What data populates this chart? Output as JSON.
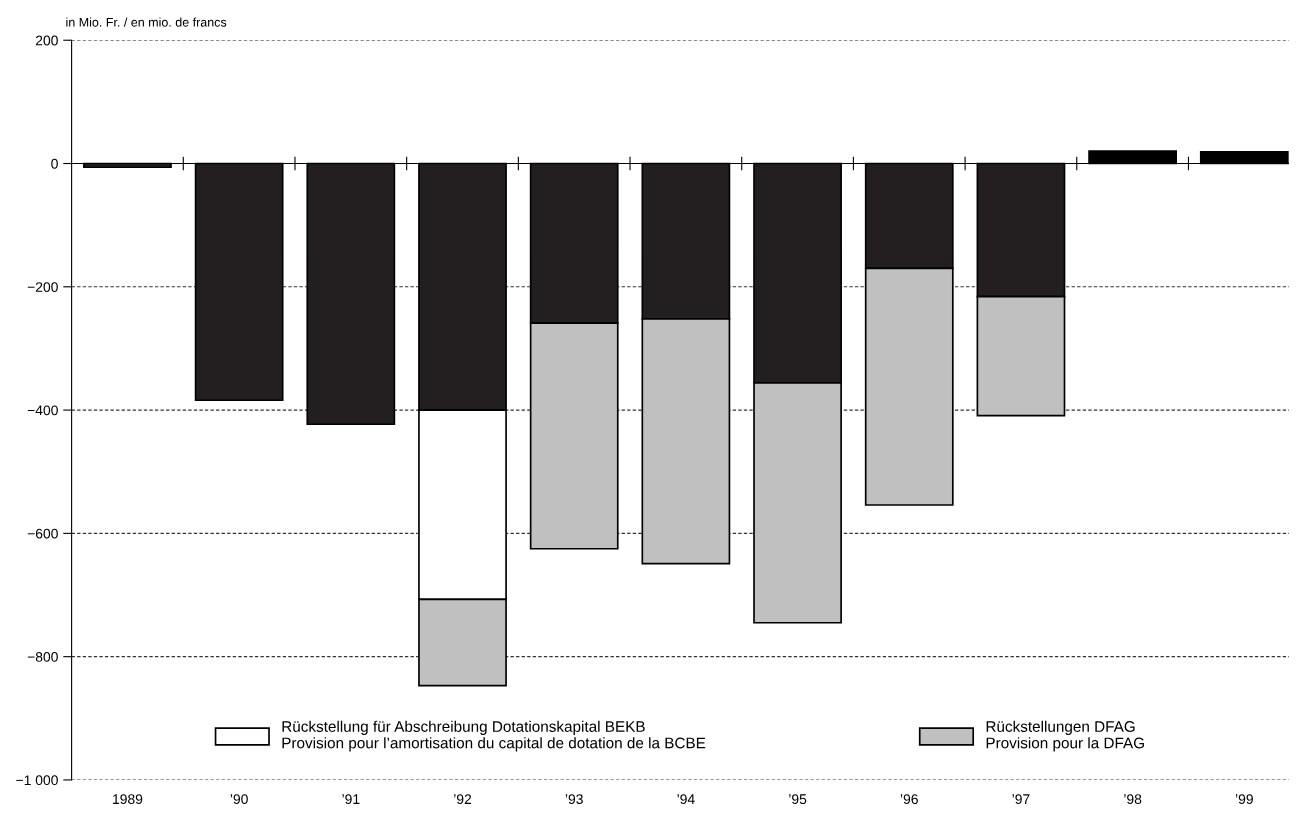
{
  "chart_data": {
    "type": "bar",
    "stacked": true,
    "ylabel": "in Mio. Fr. / en mio. de francs",
    "categories": [
      "1989",
      "’90",
      "’91",
      "’92",
      "’93",
      "’94",
      "’95",
      "’96",
      "’97",
      "’98",
      "’99"
    ],
    "series": [
      {
        "colors": [
          "#231f20",
          "#231f20",
          "#231f20",
          "#231f20",
          "#231f20",
          "#231f20",
          "#231f20",
          "#231f20",
          "#231f20",
          "#000000",
          "#000000"
        ],
        "values": [
          -6,
          -384,
          -423,
          -400,
          -259,
          -252,
          -356,
          -170,
          -216,
          20,
          19
        ]
      },
      {
        "name": "Rückstellung für Abschreibung Dotationskapital BEKB\nProvision pour l’amortisation du capital de dotation de la BCBE",
        "color": "#ffffff",
        "values": [
          null,
          null,
          null,
          -307,
          null,
          null,
          null,
          null,
          null,
          null,
          null
        ]
      },
      {
        "name": "Rückstellungen DFAG\nProvision pour la DFAG",
        "color": "#c0c0c0",
        "values": [
          null,
          null,
          null,
          -140,
          -366,
          -397,
          -389,
          -384,
          -193,
          null,
          null
        ]
      }
    ],
    "ylim": [
      -1000,
      200
    ],
    "yticks": [
      {
        "value": -1000,
        "label": "−1 000"
      },
      {
        "value": -800,
        "label": "−800"
      },
      {
        "value": -600,
        "label": "−600"
      },
      {
        "value": -400,
        "label": "−400"
      },
      {
        "value": -200,
        "label": "−200"
      },
      0,
      200
    ],
    "grid": "y",
    "line_style": "dashed",
    "legend": "bottom"
  }
}
